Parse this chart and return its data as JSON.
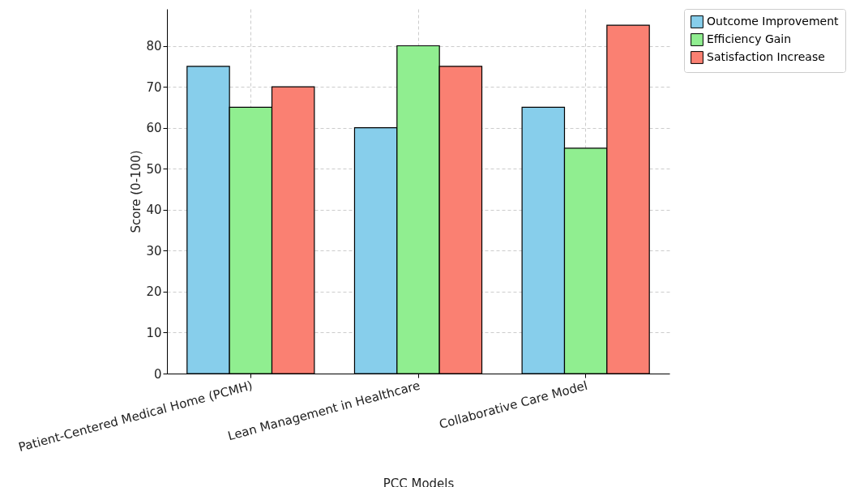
{
  "chart_data": {
    "type": "bar",
    "xlabel": "PCC Models",
    "ylabel": "Score (0-100)",
    "categories": [
      "Patient-Centered Medical Home (PCMH)",
      "Lean Management in Healthcare",
      "Collaborative Care Model"
    ],
    "series": [
      {
        "name": "Outcome Improvement",
        "color": "#87ceeb",
        "values": [
          75,
          60,
          65
        ]
      },
      {
        "name": "Efficiency Gain",
        "color": "#90ee90",
        "values": [
          65,
          80,
          55
        ]
      },
      {
        "name": "Satisfaction Increase",
        "color": "#fa8072",
        "values": [
          70,
          75,
          85
        ]
      }
    ],
    "ylim": [
      0,
      89
    ],
    "yticks": [
      0,
      10,
      20,
      30,
      40,
      50,
      60,
      70,
      80
    ],
    "grid": true,
    "legend": "top right"
  }
}
